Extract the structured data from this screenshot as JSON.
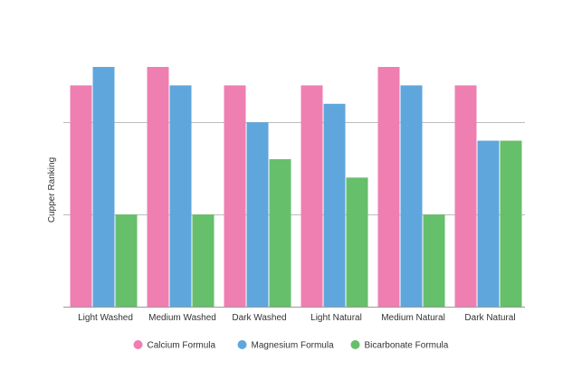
{
  "chart_data": {
    "type": "bar",
    "title": "",
    "xlabel": "",
    "ylabel": "Cupper Ranking",
    "ylim": [
      0,
      13
    ],
    "grid": true,
    "grid_values": [
      0,
      5,
      10
    ],
    "legend_position": "bottom",
    "categories": [
      "Light Washed",
      "Medium Washed",
      "Dark Washed",
      "Light Natural",
      "Medium Natural",
      "Dark Natural"
    ],
    "series": [
      {
        "name": "Calcium Formula",
        "color": "#ef7fb0",
        "values": [
          12,
          13,
          12,
          12,
          13,
          12
        ]
      },
      {
        "name": "Magnesium Formula",
        "color": "#5fa6dc",
        "values": [
          13,
          12,
          10,
          11,
          12,
          9
        ]
      },
      {
        "name": "Bicarbonate Formula",
        "color": "#66bf6a",
        "values": [
          5,
          5,
          8,
          7,
          5,
          9
        ]
      }
    ]
  }
}
